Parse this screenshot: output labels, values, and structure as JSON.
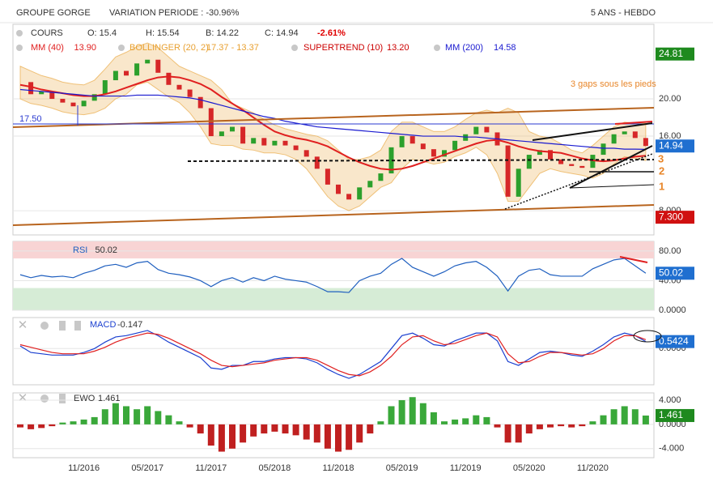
{
  "header": {
    "title": "GROUPE GORGE",
    "variation": "VARIATION PERIODE : -30.96%",
    "period": "5 ANS - HEBDO"
  },
  "legend": {
    "open": "O: 15.4",
    "high": "H: 15.54",
    "low": "B: 14.22",
    "close": "C: 14.94",
    "change": "-2.61%"
  },
  "annotations": {
    "gaps": "3 gaps sous les pieds",
    "level": "17.50",
    "gap_labels": [
      "3",
      "2",
      "1"
    ]
  },
  "chart_data": [
    {
      "type": "line",
      "ylim": [
        5.4,
        28
      ],
      "yticks": [
        {
          "value": 8,
          "label": "8.000"
        },
        {
          "value": 16,
          "label": "16.00"
        },
        {
          "value": 20,
          "label": "20.00"
        }
      ],
      "badges": [
        {
          "label": "24.81",
          "color": "#1e8a1e"
        },
        {
          "label": "14.94",
          "color": "#1f6fd0"
        },
        {
          "label": "7.300",
          "color": "#d01010"
        }
      ],
      "band": {
        "name": "BOLLINGER (20, 2)",
        "legend_value": "17.37 - 13.37",
        "color": "#e8a030",
        "upper": [
          23.5,
          23.0,
          22.5,
          22.2,
          21.8,
          21.6,
          21.5,
          22.0,
          23.2,
          24.5,
          25.0,
          25.6,
          26.0,
          25.5,
          24.5,
          23.5,
          23.0,
          22.5,
          22.0,
          21.0,
          19.5,
          19.0,
          18.5,
          17.8,
          17.2,
          16.8,
          16.5,
          16.2,
          16.0,
          15.5,
          14.5,
          13.5,
          13.5,
          13.8,
          14.5,
          16.5,
          17.5,
          17.5,
          17.0,
          16.5,
          16.5,
          17.0,
          17.8,
          18.5,
          18.8,
          18.5,
          19.0,
          18.5,
          16.5,
          16.0,
          15.8,
          15.2,
          14.5,
          14.2,
          15.0,
          16.0,
          17.0,
          17.5,
          17.4,
          17.37
        ],
        "lower": [
          20.0,
          19.5,
          19.3,
          19.0,
          18.6,
          18.4,
          18.3,
          18.5,
          19.0,
          20.0,
          20.5,
          21.5,
          21.8,
          21.0,
          20.2,
          19.6,
          18.5,
          17.0,
          15.2,
          15.0,
          15.0,
          14.6,
          14.5,
          14.2,
          14.2,
          14.0,
          13.5,
          12.5,
          11.0,
          9.5,
          8.5,
          8.0,
          8.5,
          9.5,
          10.5,
          11.0,
          12.5,
          13.5,
          13.3,
          13.0,
          13.2,
          13.8,
          14.2,
          14.8,
          14.0,
          12.0,
          9.0,
          9.0,
          10.5,
          12.0,
          12.5,
          12.2,
          12.0,
          11.8,
          11.5,
          12.0,
          13.0,
          13.8,
          13.6,
          13.37
        ]
      },
      "indicator": {
        "name": "SUPERTREND (10)",
        "legend_value": "13.20",
        "color": "#cc0000"
      },
      "series": [
        {
          "name": "COURS",
          "style": "candles",
          "up_color": "#2ca02c",
          "down_color": "#d62728",
          "values": [
            21.8,
            20.5,
            20.8,
            20.0,
            19.6,
            19.2,
            19.8,
            20.5,
            22.0,
            23.0,
            22.5,
            23.8,
            24.2,
            22.8,
            21.5,
            21.0,
            20.2,
            19.0,
            16.0,
            16.5,
            17.0,
            15.2,
            15.8,
            15.0,
            15.5,
            15.0,
            14.5,
            13.8,
            12.5,
            10.8,
            9.8,
            9.2,
            10.5,
            11.2,
            12.0,
            14.8,
            16.0,
            15.2,
            14.6,
            13.8,
            14.5,
            15.5,
            16.2,
            17.0,
            16.4,
            15.0,
            9.5,
            12.5,
            14.0,
            14.5,
            13.5,
            13.0,
            12.8,
            12.6,
            14.0,
            15.2,
            16.2,
            16.5,
            15.8,
            14.94
          ]
        },
        {
          "name": "MM (40)",
          "legend_value": "13.90",
          "color": "#e02020",
          "values": [
            21.5,
            21.3,
            21.0,
            20.8,
            20.6,
            20.4,
            20.3,
            20.3,
            20.5,
            20.8,
            21.2,
            21.6,
            22.0,
            22.3,
            22.4,
            22.3,
            22.0,
            21.6,
            21.0,
            20.2,
            19.5,
            18.8,
            18.0,
            17.2,
            16.5,
            16.1,
            15.8,
            15.6,
            15.3,
            14.9,
            14.3,
            13.7,
            13.2,
            12.8,
            12.5,
            12.4,
            12.5,
            12.8,
            13.2,
            13.6,
            14.0,
            14.4,
            14.8,
            15.2,
            15.5,
            15.6,
            15.3,
            14.9,
            14.6,
            14.4,
            14.3,
            14.2,
            13.9,
            13.6,
            13.4,
            13.3,
            13.4,
            13.6,
            13.8,
            13.9
          ]
        },
        {
          "name": "MM (200)",
          "legend_value": "14.58",
          "color": "#1a1ad0",
          "values": [
            21.0,
            20.9,
            20.8,
            20.7,
            20.6,
            20.5,
            20.4,
            20.3,
            20.3,
            20.3,
            20.3,
            20.4,
            20.4,
            20.4,
            20.3,
            20.2,
            20.1,
            19.9,
            19.6,
            19.3,
            19.0,
            18.7,
            18.4,
            18.1,
            17.9,
            17.6,
            17.4,
            17.2,
            17.0,
            16.9,
            16.8,
            16.7,
            16.6,
            16.5,
            16.4,
            16.3,
            16.2,
            16.1,
            16.0,
            16.0,
            16.0,
            16.0,
            15.9,
            15.9,
            15.8,
            15.7,
            15.6,
            15.5,
            15.4,
            15.3,
            15.2,
            15.1,
            15.0,
            14.9,
            14.8,
            14.7,
            14.7,
            14.6,
            14.6,
            14.58
          ]
        }
      ]
    },
    {
      "type": "line",
      "ylim": [
        0,
        93
      ],
      "yticks": [
        {
          "value": 80,
          "label": "80.00"
        },
        {
          "value": 40,
          "label": "40.00"
        },
        {
          "value": 0,
          "label": "0.0000"
        }
      ],
      "zones": {
        "overbought": 70,
        "oversold": 30
      },
      "series": [
        {
          "name": "RSI",
          "legend_value": "50.02",
          "color": "#1f5fbf",
          "values": [
            48,
            44,
            47,
            45,
            46,
            44,
            50,
            54,
            60,
            62,
            58,
            64,
            66,
            55,
            50,
            48,
            45,
            40,
            32,
            40,
            44,
            38,
            44,
            40,
            46,
            42,
            40,
            38,
            32,
            25,
            25,
            24,
            40,
            46,
            50,
            62,
            70,
            58,
            52,
            46,
            52,
            60,
            64,
            66,
            58,
            46,
            26,
            46,
            54,
            56,
            48,
            46,
            46,
            46,
            56,
            62,
            68,
            70,
            60,
            50.02
          ]
        }
      ],
      "badges": [
        {
          "label": "50.02",
          "color": "#1f6fd0"
        }
      ]
    },
    {
      "type": "line",
      "ylim": [
        -2.8,
        2.4
      ],
      "yticks": [
        {
          "value": 0,
          "label": "0.0000"
        }
      ],
      "series": [
        {
          "name": "MACD",
          "legend_value": "-0.147",
          "color": "#1a3fd0",
          "values": [
            0.2,
            -0.3,
            -0.4,
            -0.5,
            -0.5,
            -0.5,
            -0.3,
            0,
            0.5,
            0.9,
            1.0,
            1.2,
            1.4,
            1.0,
            0.5,
            0.1,
            -0.3,
            -0.7,
            -1.5,
            -1.6,
            -1.3,
            -1.3,
            -1.0,
            -1.0,
            -0.8,
            -0.7,
            -0.7,
            -0.8,
            -1.1,
            -1.6,
            -2.0,
            -2.3,
            -2.0,
            -1.5,
            -1.0,
            0.0,
            1.0,
            1.2,
            0.8,
            0.3,
            0.2,
            0.6,
            0.9,
            1.2,
            1.2,
            0.6,
            -1.0,
            -1.3,
            -0.8,
            -0.3,
            -0.2,
            -0.3,
            -0.5,
            -0.6,
            -0.2,
            0.3,
            0.9,
            1.2,
            1.0,
            0.5424
          ]
        },
        {
          "color": "#e02020",
          "values": [
            0.3,
            0.1,
            -0.1,
            -0.3,
            -0.4,
            -0.4,
            -0.4,
            -0.2,
            0.1,
            0.5,
            0.8,
            1.0,
            1.2,
            1.1,
            0.8,
            0.4,
            0.0,
            -0.4,
            -0.9,
            -1.3,
            -1.4,
            -1.3,
            -1.2,
            -1.1,
            -0.9,
            -0.8,
            -0.7,
            -0.7,
            -0.9,
            -1.3,
            -1.7,
            -2.0,
            -2.1,
            -1.8,
            -1.3,
            -0.6,
            0.3,
            0.9,
            1.0,
            0.6,
            0.3,
            0.4,
            0.7,
            1.0,
            1.2,
            0.9,
            -0.4,
            -1.1,
            -1.0,
            -0.6,
            -0.3,
            -0.3,
            -0.4,
            -0.5,
            -0.4,
            0.0,
            0.6,
            1.0,
            1.0,
            0.69
          ]
        }
      ],
      "badges": [
        {
          "label": "0.5424",
          "color": "#1f6fd0"
        }
      ]
    },
    {
      "type": "bar",
      "name": "EWO",
      "legend_value": "1.461",
      "up_color": "#3aa83a",
      "down_color": "#c02020",
      "ylim": [
        -5.5,
        5.2
      ],
      "yticks": [
        {
          "value": 4,
          "label": "4.000"
        },
        {
          "value": 0,
          "label": "0.0000"
        },
        {
          "value": -4,
          "label": "-4.000"
        }
      ],
      "categories": [
        null,
        null,
        null,
        null,
        null,
        null,
        "11/2016",
        null,
        null,
        null,
        null,
        null,
        "05/2017",
        null,
        null,
        null,
        null,
        null,
        "11/2017",
        null,
        null,
        null,
        null,
        null,
        "05/2018",
        null,
        null,
        null,
        null,
        null,
        "11/2018",
        null,
        null,
        null,
        null,
        null,
        "05/2019",
        null,
        null,
        null,
        null,
        null,
        "11/2019",
        null,
        null,
        null,
        null,
        null,
        "05/2020",
        null,
        null,
        null,
        null,
        null,
        "11/2020",
        null,
        null,
        null,
        null,
        null
      ],
      "values": [
        -0.5,
        -0.8,
        -0.6,
        -0.3,
        0.3,
        0.5,
        0.8,
        1.2,
        2.5,
        3.5,
        3.0,
        2.5,
        3.0,
        2.2,
        1.5,
        0.5,
        -0.5,
        -1.5,
        -3.5,
        -4.5,
        -4.0,
        -3.0,
        -2.0,
        -1.5,
        -1.2,
        -1.5,
        -1.8,
        -2.5,
        -3.0,
        -4.0,
        -4.5,
        -4.2,
        -3.0,
        -1.5,
        0.5,
        3.0,
        4.0,
        4.5,
        3.5,
        2.0,
        0.5,
        0.8,
        1.0,
        1.5,
        1.2,
        -0.5,
        -3.0,
        -3.0,
        -1.5,
        -0.8,
        -0.5,
        -0.3,
        -0.5,
        -0.3,
        0.5,
        1.5,
        2.5,
        3.0,
        2.5,
        1.461
      ],
      "badges": [
        {
          "label": "1.461",
          "color": "#1e8a1e"
        }
      ]
    }
  ]
}
